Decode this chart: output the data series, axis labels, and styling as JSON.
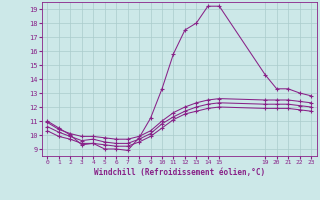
{
  "xlabel": "Windchill (Refroidissement éolien,°C)",
  "bg_color": "#cce8e8",
  "grid_color": "#aacccc",
  "line_color": "#882288",
  "x_ticks": [
    0,
    1,
    2,
    3,
    4,
    5,
    6,
    7,
    8,
    9,
    10,
    11,
    12,
    13,
    14,
    15,
    19,
    20,
    21,
    22,
    23
  ],
  "ylim": [
    8.5,
    19.5
  ],
  "xlim": [
    -0.5,
    23.5
  ],
  "series1_x": [
    0,
    1,
    2,
    3,
    4,
    5,
    6,
    7,
    8,
    9,
    10,
    11,
    12,
    13,
    14,
    15,
    19,
    20,
    21,
    22,
    23
  ],
  "series1_y": [
    11.0,
    10.5,
    10.0,
    9.3,
    9.4,
    9.0,
    9.0,
    8.9,
    9.8,
    11.2,
    13.3,
    15.8,
    17.5,
    18.0,
    19.2,
    19.2,
    14.3,
    13.3,
    13.3,
    13.0,
    12.8
  ],
  "series2_x": [
    0,
    1,
    2,
    3,
    4,
    5,
    6,
    7,
    8,
    9,
    10,
    11,
    12,
    13,
    14,
    15,
    19,
    20,
    21,
    22,
    23
  ],
  "series2_y": [
    10.9,
    10.4,
    10.1,
    9.9,
    9.9,
    9.8,
    9.7,
    9.7,
    9.9,
    10.3,
    11.0,
    11.6,
    12.0,
    12.3,
    12.5,
    12.6,
    12.5,
    12.5,
    12.5,
    12.4,
    12.3
  ],
  "series3_x": [
    0,
    1,
    2,
    3,
    4,
    5,
    6,
    7,
    8,
    9,
    10,
    11,
    12,
    13,
    14,
    15,
    19,
    20,
    21,
    22,
    23
  ],
  "series3_y": [
    10.6,
    10.2,
    9.9,
    9.6,
    9.7,
    9.5,
    9.4,
    9.4,
    9.7,
    10.1,
    10.8,
    11.3,
    11.7,
    12.0,
    12.2,
    12.3,
    12.2,
    12.2,
    12.2,
    12.1,
    12.0
  ],
  "series4_x": [
    0,
    1,
    2,
    3,
    4,
    5,
    6,
    7,
    8,
    9,
    10,
    11,
    12,
    13,
    14,
    15,
    19,
    20,
    21,
    22,
    23
  ],
  "series4_y": [
    10.3,
    9.9,
    9.7,
    9.4,
    9.4,
    9.3,
    9.2,
    9.2,
    9.5,
    9.9,
    10.5,
    11.1,
    11.5,
    11.7,
    11.9,
    12.0,
    11.9,
    11.9,
    11.9,
    11.8,
    11.7
  ]
}
